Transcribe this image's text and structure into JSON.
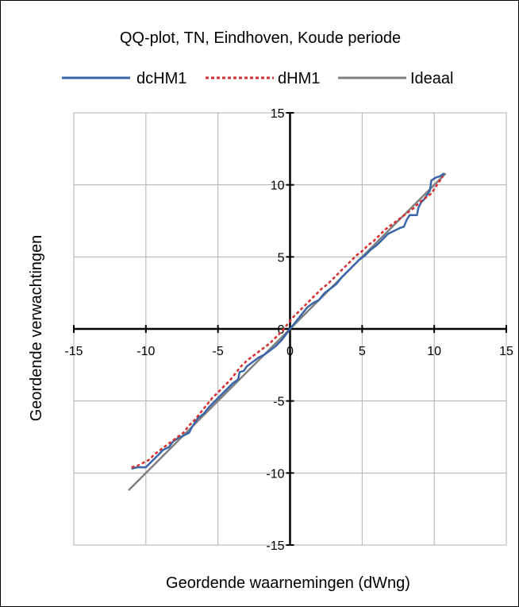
{
  "chart_data": {
    "type": "line",
    "title": "QQ-plot, TN, Eindhoven, Koude periode",
    "xlabel": "Geordende waarnemingen (dWng)",
    "ylabel": "Geordende verwachtingen",
    "xlim": [
      -15,
      15
    ],
    "ylim": [
      -15,
      15
    ],
    "xticks": [
      -15,
      -10,
      -5,
      0,
      5,
      10,
      15
    ],
    "yticks": [
      -15,
      -10,
      -5,
      0,
      5,
      10,
      15
    ],
    "grid": true,
    "legend_position": "top",
    "series": [
      {
        "name": "dcHM1",
        "color": "#3a66a8",
        "dash": "solid",
        "x": [
          -11.0,
          -10.6,
          -10.0,
          -9.7,
          -9.4,
          -9.1,
          -8.8,
          -8.4,
          -8.1,
          -7.8,
          -7.4,
          -7.0,
          -6.8,
          -6.4,
          -6.0,
          -5.6,
          -5.2,
          -4.8,
          -4.4,
          -4.0,
          -3.6,
          -3.5,
          -3.2,
          -3.0,
          -2.6,
          -2.2,
          -1.8,
          -1.4,
          -1.0,
          -0.6,
          -0.3,
          0.0,
          0.4,
          0.8,
          1.2,
          1.6,
          2.0,
          2.4,
          2.8,
          3.2,
          3.6,
          4.0,
          4.4,
          4.8,
          5.2,
          5.6,
          6.0,
          6.4,
          6.8,
          7.2,
          7.6,
          7.9,
          8.1,
          8.3,
          8.5,
          8.8,
          8.9,
          9.1,
          9.3,
          9.5,
          9.7,
          9.8,
          10.1,
          10.4,
          10.7
        ],
        "y": [
          -9.7,
          -9.6,
          -9.6,
          -9.3,
          -9.0,
          -8.7,
          -8.4,
          -8.2,
          -7.8,
          -7.6,
          -7.4,
          -7.2,
          -6.8,
          -6.2,
          -5.9,
          -5.4,
          -5.0,
          -4.6,
          -4.2,
          -3.8,
          -3.5,
          -3.0,
          -2.9,
          -2.6,
          -2.3,
          -2.0,
          -1.8,
          -1.5,
          -1.2,
          -0.8,
          -0.4,
          0.0,
          0.5,
          1.0,
          1.5,
          1.8,
          2.0,
          2.5,
          2.8,
          3.1,
          3.6,
          4.0,
          4.4,
          4.8,
          5.1,
          5.5,
          5.8,
          6.2,
          6.6,
          6.8,
          7.0,
          7.1,
          7.6,
          7.9,
          7.9,
          7.9,
          8.4,
          8.8,
          9.0,
          9.3,
          9.6,
          10.3,
          10.5,
          10.6,
          10.8
        ]
      },
      {
        "name": "dHM1",
        "color": "#d63030",
        "dash": "dotted",
        "x": [
          -11.0,
          -10.6,
          -10.2,
          -9.8,
          -9.4,
          -9.0,
          -8.6,
          -8.2,
          -7.8,
          -7.4,
          -7.0,
          -6.6,
          -6.2,
          -5.8,
          -5.4,
          -5.0,
          -4.6,
          -4.2,
          -3.8,
          -3.4,
          -3.0,
          -2.6,
          -2.2,
          -1.8,
          -1.4,
          -1.0,
          -0.6,
          -0.2,
          0.2,
          0.6,
          1.0,
          1.4,
          1.8,
          2.2,
          2.6,
          3.0,
          3.4,
          3.8,
          4.2,
          4.6,
          5.0,
          5.4,
          5.8,
          6.2,
          6.6,
          7.0,
          7.4,
          7.8,
          8.2,
          8.6,
          9.0,
          9.4,
          9.8,
          10.2,
          10.6
        ],
        "y": [
          -9.6,
          -9.5,
          -9.3,
          -9.1,
          -8.7,
          -8.4,
          -8.1,
          -7.8,
          -7.5,
          -7.2,
          -6.7,
          -6.3,
          -5.8,
          -5.3,
          -4.8,
          -4.4,
          -4.0,
          -3.6,
          -3.1,
          -2.6,
          -2.2,
          -1.9,
          -1.6,
          -1.3,
          -1.0,
          -0.6,
          -0.2,
          0.3,
          0.8,
          1.2,
          1.6,
          2.0,
          2.4,
          2.8,
          3.1,
          3.5,
          3.9,
          4.3,
          4.7,
          5.1,
          5.4,
          5.8,
          6.1,
          6.5,
          6.9,
          7.2,
          7.5,
          7.8,
          8.1,
          8.4,
          8.8,
          9.1,
          9.4,
          10.0,
          10.6
        ]
      },
      {
        "name": "Ideaal",
        "color": "#808080",
        "dash": "solid",
        "x": [
          -11.2,
          10.8
        ],
        "y": [
          -11.2,
          10.8
        ]
      }
    ]
  }
}
